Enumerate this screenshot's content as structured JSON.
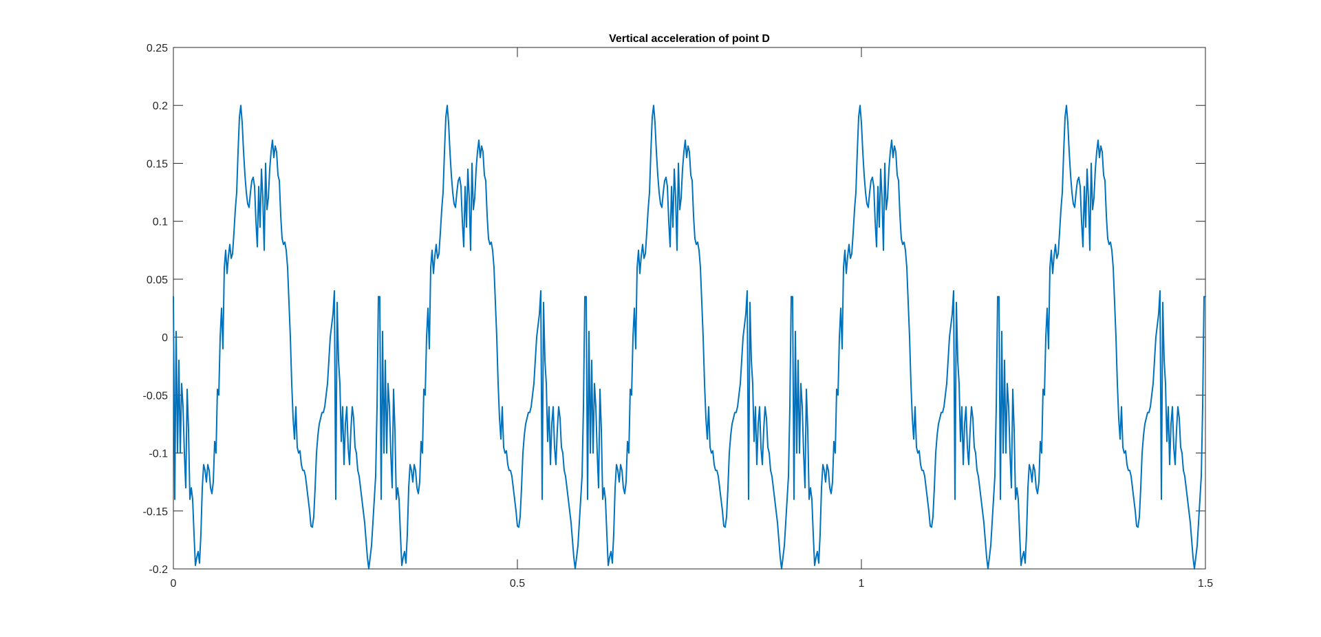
{
  "chart_data": {
    "type": "line",
    "title": "Vertical acceleration of point D",
    "xlabel": "",
    "ylabel": "",
    "xlim": [
      0,
      1.5
    ],
    "ylim": [
      -0.2,
      0.25
    ],
    "x_ticks": [
      0,
      0.5,
      1,
      1.5
    ],
    "x_tick_labels": [
      "0",
      "0.5",
      "1",
      "1.5"
    ],
    "y_ticks": [
      -0.2,
      -0.15,
      -0.1,
      -0.05,
      0,
      0.05,
      0.1,
      0.15,
      0.2,
      0.25
    ],
    "y_tick_labels": [
      "-0.2",
      "-0.15",
      "-0.1",
      "-0.05",
      "0",
      "0.05",
      "0.1",
      "0.15",
      "0.2",
      "0.25"
    ],
    "grid": false,
    "line_color": "#0072BD",
    "period": 0.3,
    "series": [
      {
        "x": [
          0,
          0.002,
          0.004,
          0.006,
          0.008,
          0.01,
          0.012,
          0.014,
          0.016,
          0.018,
          0.02,
          0.022,
          0.024,
          0.026,
          0.028,
          0.03,
          0.032,
          0.034,
          0.036,
          0.038,
          0.04,
          0.042,
          0.044,
          0.046,
          0.048,
          0.05,
          0.052,
          0.054,
          0.056,
          0.058,
          0.06,
          0.062,
          0.064,
          0.066,
          0.068,
          0.07,
          0.072,
          0.074,
          0.076,
          0.078,
          0.08,
          0.082,
          0.084,
          0.086,
          0.088,
          0.09,
          0.092,
          0.094,
          0.096,
          0.098,
          0.1,
          0.102,
          0.104,
          0.106,
          0.108,
          0.11,
          0.112,
          0.114,
          0.116,
          0.118,
          0.12,
          0.122,
          0.124,
          0.126,
          0.128,
          0.13,
          0.132,
          0.134,
          0.136,
          0.138,
          0.14,
          0.142,
          0.144,
          0.146,
          0.148,
          0.15,
          0.152,
          0.154,
          0.156,
          0.158,
          0.16,
          0.162,
          0.164,
          0.166,
          0.168,
          0.17,
          0.172,
          0.174,
          0.176,
          0.178,
          0.18,
          0.182,
          0.184,
          0.186,
          0.188,
          0.19,
          0.192,
          0.194,
          0.196,
          0.198,
          0.2,
          0.202,
          0.204,
          0.206,
          0.208,
          0.21,
          0.212,
          0.214,
          0.216,
          0.218,
          0.22,
          0.222,
          0.224,
          0.226,
          0.228,
          0.23,
          0.232,
          0.234,
          0.236,
          0.238,
          0.24,
          0.242,
          0.244,
          0.246,
          0.248,
          0.25,
          0.252,
          0.254,
          0.256,
          0.258,
          0.26,
          0.262,
          0.264,
          0.266,
          0.268,
          0.27,
          0.272,
          0.274,
          0.276,
          0.278,
          0.28,
          0.282,
          0.284,
          0.286,
          0.288,
          0.29,
          0.292,
          0.294,
          0.296,
          0.298
        ],
        "y": [
          0.035,
          -0.14,
          0.005,
          -0.1,
          -0.02,
          -0.1,
          -0.04,
          -0.06,
          -0.1,
          -0.13,
          -0.045,
          -0.08,
          -0.14,
          -0.13,
          -0.14,
          -0.17,
          -0.197,
          -0.19,
          -0.185,
          -0.195,
          -0.17,
          -0.13,
          -0.11,
          -0.115,
          -0.125,
          -0.11,
          -0.115,
          -0.13,
          -0.135,
          -0.125,
          -0.09,
          -0.1,
          -0.045,
          -0.05,
          0.0,
          0.025,
          -0.01,
          0.06,
          0.075,
          0.055,
          0.07,
          0.08,
          0.068,
          0.072,
          0.09,
          0.11,
          0.125,
          0.16,
          0.19,
          0.2,
          0.185,
          0.16,
          0.14,
          0.125,
          0.115,
          0.112,
          0.125,
          0.135,
          0.138,
          0.13,
          0.1,
          0.078,
          0.13,
          0.095,
          0.145,
          0.12,
          0.075,
          0.15,
          0.11,
          0.12,
          0.145,
          0.16,
          0.17,
          0.155,
          0.165,
          0.16,
          0.14,
          0.135,
          0.105,
          0.085,
          0.08,
          0.082,
          0.075,
          0.06,
          0.03,
          0.0,
          -0.04,
          -0.07,
          -0.088,
          -0.06,
          -0.095,
          -0.1,
          -0.098,
          -0.11,
          -0.115,
          -0.115,
          -0.12,
          -0.13,
          -0.14,
          -0.15,
          -0.163,
          -0.164,
          -0.155,
          -0.13,
          -0.1,
          -0.085,
          -0.075,
          -0.07,
          -0.065,
          -0.065,
          -0.06,
          -0.05,
          -0.04,
          -0.02,
          -0.0,
          0.01,
          0.02,
          0.04,
          -0.14,
          0.03,
          -0.02,
          -0.04,
          -0.09,
          -0.06,
          -0.11,
          -0.075,
          -0.06,
          -0.095,
          -0.11,
          -0.08,
          -0.06,
          -0.07,
          -0.095,
          -0.1,
          -0.115,
          -0.12,
          -0.13,
          -0.14,
          -0.15,
          -0.16,
          -0.175,
          -0.19,
          -0.2,
          -0.19,
          -0.18,
          -0.16,
          -0.14,
          -0.12,
          -0.06,
          0.035
        ]
      }
    ]
  }
}
